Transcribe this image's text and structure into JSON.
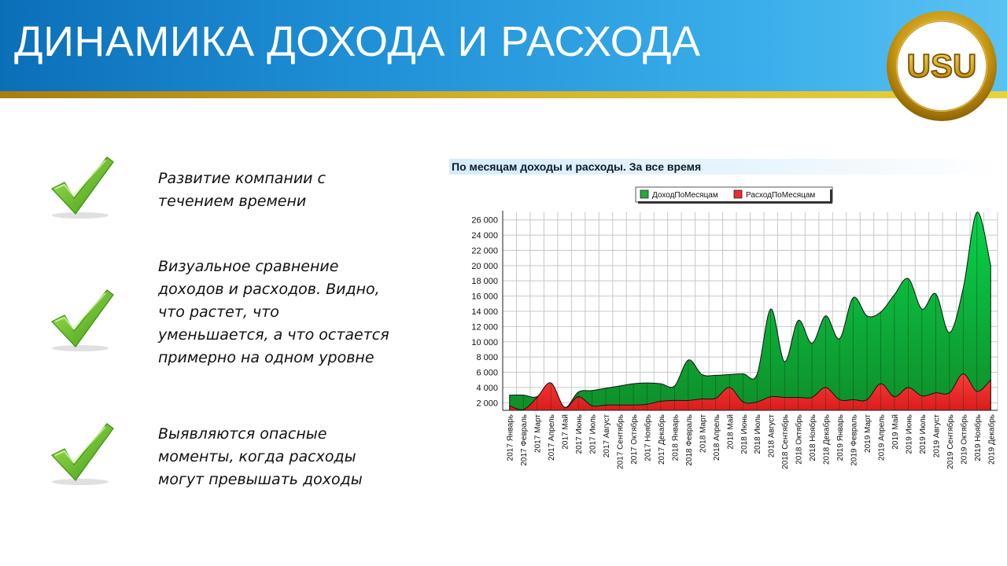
{
  "slide": {
    "title": "ДИНАМИКА ДОХОДА И РАСХОДА",
    "logo_text": "USU",
    "colors": {
      "header_blue": "#1f8fd6",
      "gold": "#d4b22a",
      "check_green": "#5fc21e"
    },
    "bullets": [
      {
        "icon": "checkmark-icon",
        "text": "Развитие компании с течением времени"
      },
      {
        "icon": "checkmark-icon",
        "text": "Визуальное сравнение доходов и расходов. Видно, что растет, что уменьшается, а что остается примерно на одном уровне"
      },
      {
        "icon": "checkmark-icon",
        "text": "Выявляются опасные моменты, когда расходы могут превышать доходы"
      }
    ]
  },
  "chart_data": {
    "type": "area",
    "title": "По месяцам доходы и расходы. За все время",
    "xlabel": "",
    "ylabel": "",
    "ylim": [
      1000,
      27000
    ],
    "yticks": [
      2000,
      4000,
      6000,
      8000,
      10000,
      12000,
      14000,
      16000,
      18000,
      20000,
      22000,
      24000,
      26000
    ],
    "ytick_labels": [
      "2 000",
      "4 000",
      "6 000",
      "8 000",
      "10 000",
      "12 000",
      "14 000",
      "16 000",
      "18 000",
      "20 000",
      "22 000",
      "24 000",
      "26 000"
    ],
    "grid": true,
    "legend_position": "top-center",
    "categories": [
      "2017 Январь",
      "2017 Февраль",
      "2017 Март",
      "2017 Апрель",
      "2017 Май",
      "2017 Июнь",
      "2017 Июль",
      "2017 Август",
      "2017 Сентябрь",
      "2017 Октябрь",
      "2017 Ноябрь",
      "2017 Декабрь",
      "2018 Январь",
      "2018 Февраль",
      "2018 Март",
      "2018 Апрель",
      "2018 Май",
      "2018 Июнь",
      "2018 Июль",
      "2018 Август",
      "2018 Сентябрь",
      "2018 Октябрь",
      "2018 Ноябрь",
      "2018 Декабрь",
      "2019 Январь",
      "2019 Февраль",
      "2019 Март",
      "2019 Апрель",
      "2019 Май",
      "2019 Июнь",
      "2019 Июль",
      "2019 Август",
      "2019 Сентябрь",
      "2019 Октябрь",
      "2019 Ноябрь",
      "2019 Декабрь"
    ],
    "series": [
      {
        "name": "ДоходПоМесяцам",
        "color": "#1fae3c",
        "values": [
          3000,
          3000,
          2800,
          4600,
          1400,
          3400,
          3600,
          3900,
          4200,
          4500,
          4600,
          4500,
          4200,
          7600,
          5700,
          5600,
          5700,
          5800,
          5700,
          14300,
          7400,
          12800,
          9800,
          13400,
          10400,
          15800,
          13400,
          13900,
          16200,
          18300,
          14300,
          16300,
          11200,
          17000,
          27000,
          20000
        ]
      },
      {
        "name": "РасходПоМесяцам",
        "color": "#ee2b2b",
        "values": [
          1600,
          1100,
          2700,
          4600,
          1400,
          2800,
          1600,
          1700,
          1700,
          1700,
          1800,
          2200,
          2300,
          2300,
          2500,
          2600,
          4000,
          2100,
          2100,
          2800,
          2700,
          2700,
          2700,
          4000,
          2400,
          2400,
          2400,
          4500,
          2800,
          4000,
          2900,
          3300,
          3300,
          5800,
          3500,
          5000
        ]
      }
    ]
  }
}
